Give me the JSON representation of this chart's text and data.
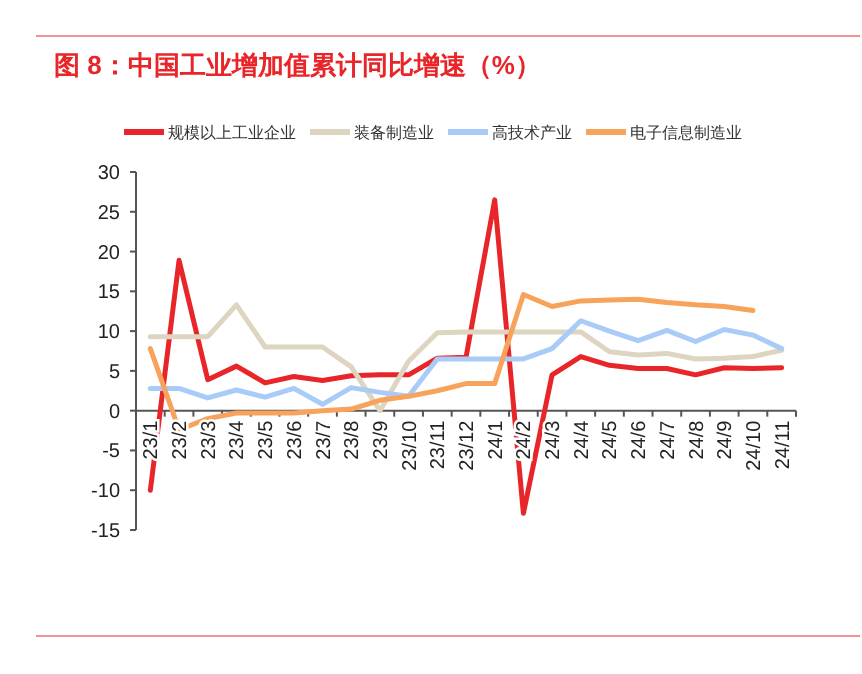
{
  "chart_data": {
    "type": "line",
    "title": "图 8：中国工业增加值累计同比增速（%）",
    "categories": [
      "23/1",
      "23/2",
      "23/3",
      "23/4",
      "23/5",
      "23/6",
      "23/7",
      "23/8",
      "23/9",
      "23/10",
      "23/11",
      "23/12",
      "24/1",
      "24/2",
      "24/3",
      "24/4",
      "24/5",
      "24/6",
      "24/7",
      "24/8",
      "24/9",
      "24/10",
      "24/11"
    ],
    "series": [
      {
        "name": "规模以上工业企业",
        "color": "#e8262a",
        "values": [
          -10,
          18.9,
          3.9,
          5.6,
          3.5,
          4.3,
          3.8,
          4.4,
          4.5,
          4.5,
          6.6,
          6.7,
          26.5,
          -12.9,
          4.5,
          6.8,
          5.7,
          5.3,
          5.3,
          4.5,
          5.4,
          5.3,
          5.4
        ]
      },
      {
        "name": "装备制造业",
        "color": "#ddd5c0",
        "values": [
          9.3,
          9.3,
          9.3,
          13.3,
          8.0,
          8.0,
          8.0,
          5.5,
          0,
          6.2,
          9.8,
          9.9,
          9.9,
          9.9,
          9.9,
          9.9,
          7.4,
          7.0,
          7.2,
          6.5,
          6.6,
          6.8,
          7.6
        ]
      },
      {
        "name": "高技术产业",
        "color": "#a9cbf7",
        "values": [
          2.8,
          2.8,
          1.6,
          2.6,
          1.7,
          2.8,
          0.8,
          2.9,
          2.3,
          1.8,
          6.5,
          6.5,
          6.5,
          6.5,
          7.8,
          11.3,
          10.0,
          8.8,
          10.1,
          8.7,
          10.2,
          9.5,
          7.8
        ]
      },
      {
        "name": "电子信息制造业",
        "color": "#f7a35c",
        "values": [
          7.8,
          -2.4,
          -1.0,
          -0.3,
          -0.3,
          -0.3,
          0.0,
          0.2,
          1.3,
          1.8,
          2.5,
          3.4,
          3.4,
          14.6,
          13.1,
          13.8,
          13.9,
          14.0,
          13.6,
          13.3,
          13.1,
          12.6,
          null
        ]
      }
    ],
    "ylim": [
      -15,
      30
    ],
    "yticks": [
      -15,
      -10,
      -5,
      0,
      5,
      10,
      15,
      20,
      25,
      30
    ],
    "legend": "top",
    "grid": false
  }
}
